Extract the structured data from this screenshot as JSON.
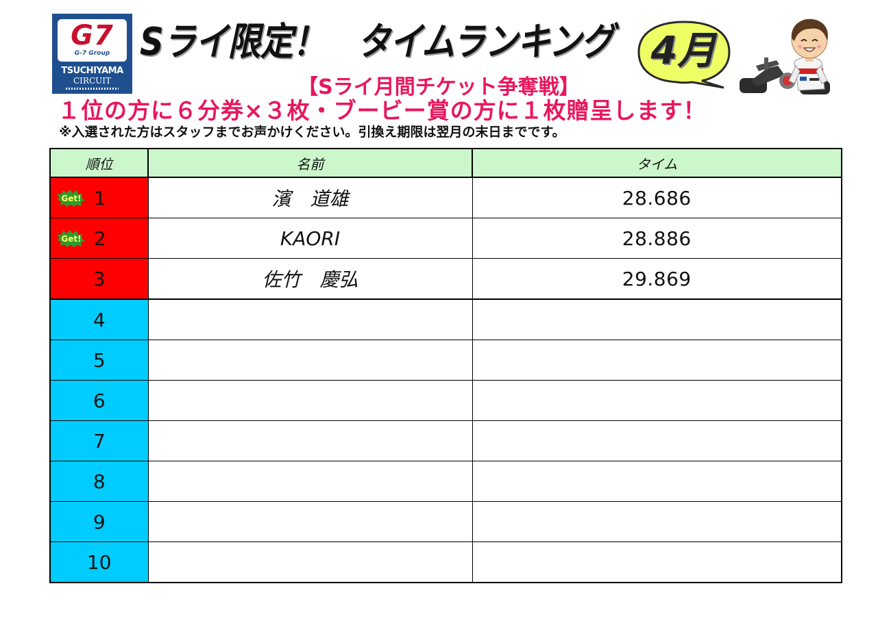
{
  "logo": {
    "mark": "G7",
    "group": "G-7 Group",
    "name": "TSUCHIYAMA",
    "sub": "CIRCUIT",
    "colors": {
      "background": "#1f4f8f",
      "mark": "#c8102e"
    }
  },
  "header": {
    "title": "Sライ限定！　タイムランキング",
    "month": "4月",
    "subtitle": "【Sライ月間チケット争奪戦】",
    "prize_line": "１位の方に６分券×３枚・ブービー賞の方に１枚贈呈します！",
    "note": "※入選された方はスタッフまでお声かけください。引換え期限は翌月の末日までです。"
  },
  "table": {
    "headers": {
      "rank": "順位",
      "name": "名前",
      "time": "タイム"
    },
    "badge_text": "Get!",
    "rows": [
      {
        "rank": "1",
        "name": "濱　道雄",
        "time": "28.686",
        "badge": true
      },
      {
        "rank": "2",
        "name": "KAORI",
        "time": "28.886",
        "badge": true
      },
      {
        "rank": "3",
        "name": "佐竹　慶弘",
        "time": "29.869",
        "badge": false
      },
      {
        "rank": "4",
        "name": "",
        "time": "",
        "badge": false
      },
      {
        "rank": "5",
        "name": "",
        "time": "",
        "badge": false
      },
      {
        "rank": "6",
        "name": "",
        "time": "",
        "badge": false
      },
      {
        "rank": "7",
        "name": "",
        "time": "",
        "badge": false
      },
      {
        "rank": "8",
        "name": "",
        "time": "",
        "badge": false
      },
      {
        "rank": "9",
        "name": "",
        "time": "",
        "badge": false
      },
      {
        "rank": "10",
        "name": "",
        "time": "",
        "badge": false
      }
    ],
    "colors": {
      "header_bg": "#ccf7cc",
      "top3_bg": "#ff0000",
      "others_bg": "#00ccff",
      "badge": "#2e9b2e",
      "accent_text": "#e8175d",
      "month_bubble": "#eeff66"
    }
  }
}
